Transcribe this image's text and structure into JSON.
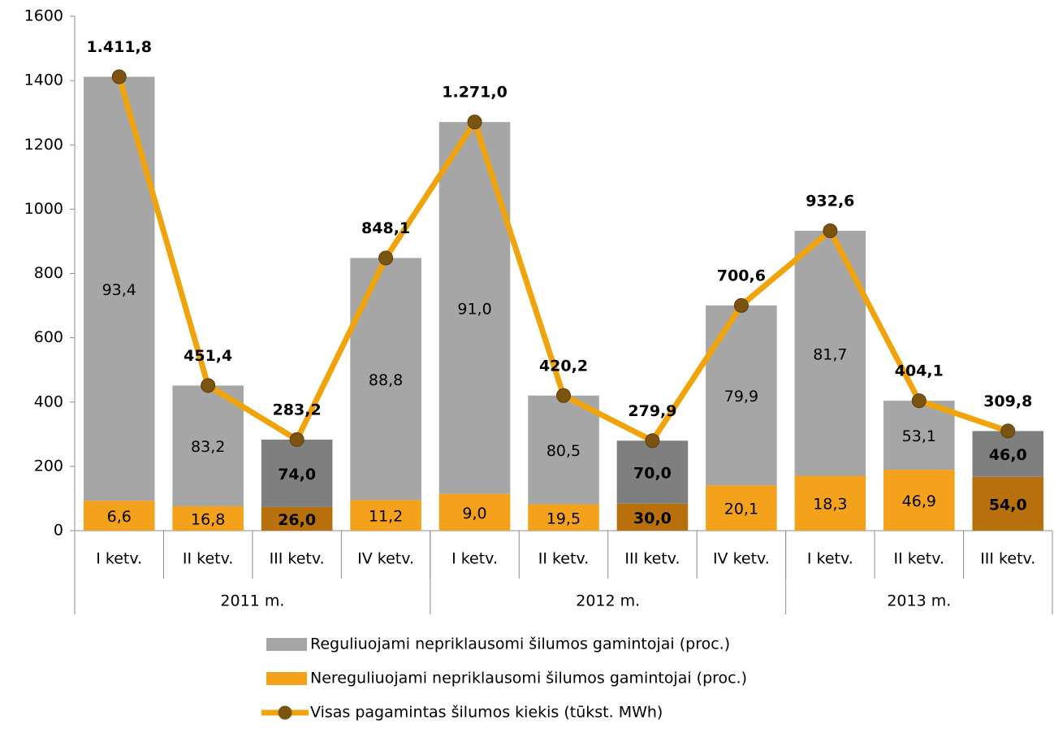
{
  "chart_data": {
    "type": "bar",
    "categories": [
      "I ketv.",
      "II ketv.",
      "III ketv.",
      "IV ketv.",
      "I ketv.",
      "II ketv.",
      "III ketv.",
      "IV ketv.",
      "I ketv.",
      "II ketv.",
      "III ketv."
    ],
    "groups": [
      {
        "label": "2011 m.",
        "span": 4
      },
      {
        "label": "2012 m.",
        "span": 4
      },
      {
        "label": "2013 m.",
        "span": 3
      }
    ],
    "series": [
      {
        "name": "Reguliuojami nepriklausomi šilumos gamintojai (proc.)",
        "type": "bar",
        "color": "#a6a6a6",
        "colors": [
          "#a6a6a6",
          "#a6a6a6",
          "#7f7f7f",
          "#a6a6a6",
          "#a6a6a6",
          "#a6a6a6",
          "#7f7f7f",
          "#a6a6a6",
          "#a6a6a6",
          "#a6a6a6",
          "#7f7f7f"
        ],
        "values": [
          93.4,
          83.2,
          74.0,
          88.8,
          91.0,
          80.5,
          70.0,
          79.9,
          81.7,
          53.1,
          46.0
        ],
        "value_labels": [
          "93,4",
          "83,2",
          "74,0",
          "88,8",
          "91,0",
          "80,5",
          "70,0",
          "79,9",
          "81,7",
          "53,1",
          "46,0"
        ]
      },
      {
        "name": "Nereguliuojami nepriklausomi šilumos gamintojai (proc.)",
        "type": "bar",
        "color": "#f4a21b",
        "colors": [
          "#f4a21b",
          "#f4a21b",
          "#b8700c",
          "#f4a21b",
          "#f4a21b",
          "#f4a21b",
          "#b8700c",
          "#f4a21b",
          "#f4a21b",
          "#f4a21b",
          "#b8700c"
        ],
        "values": [
          6.6,
          16.8,
          26.0,
          11.2,
          9.0,
          19.5,
          30.0,
          20.1,
          18.3,
          46.9,
          54.0
        ],
        "value_labels": [
          "6,6",
          "16,8",
          "26,0",
          "11,2",
          "9,0",
          "19,5",
          "30,0",
          "20,1",
          "18,3",
          "46,9",
          "54,0"
        ]
      },
      {
        "name": "Visas pagamintas šilumos kiekis (tūkst. MWh)",
        "type": "line",
        "color": "#f0a30a",
        "marker_color": "#7a5410",
        "values": [
          1411.8,
          451.4,
          283.2,
          848.1,
          1271.0,
          420.2,
          279.9,
          700.6,
          932.6,
          404.1,
          309.8
        ],
        "value_labels": [
          "1.411,8",
          "451,4",
          "283,2",
          "848,1",
          "1.271,0",
          "420,2",
          "279,9",
          "700,6",
          "932,6",
          "404,1",
          "309,8"
        ]
      }
    ],
    "ylim": [
      0,
      1600
    ],
    "yticks": [
      0,
      200,
      400,
      600,
      800,
      1000,
      1200,
      1400,
      1600
    ]
  }
}
